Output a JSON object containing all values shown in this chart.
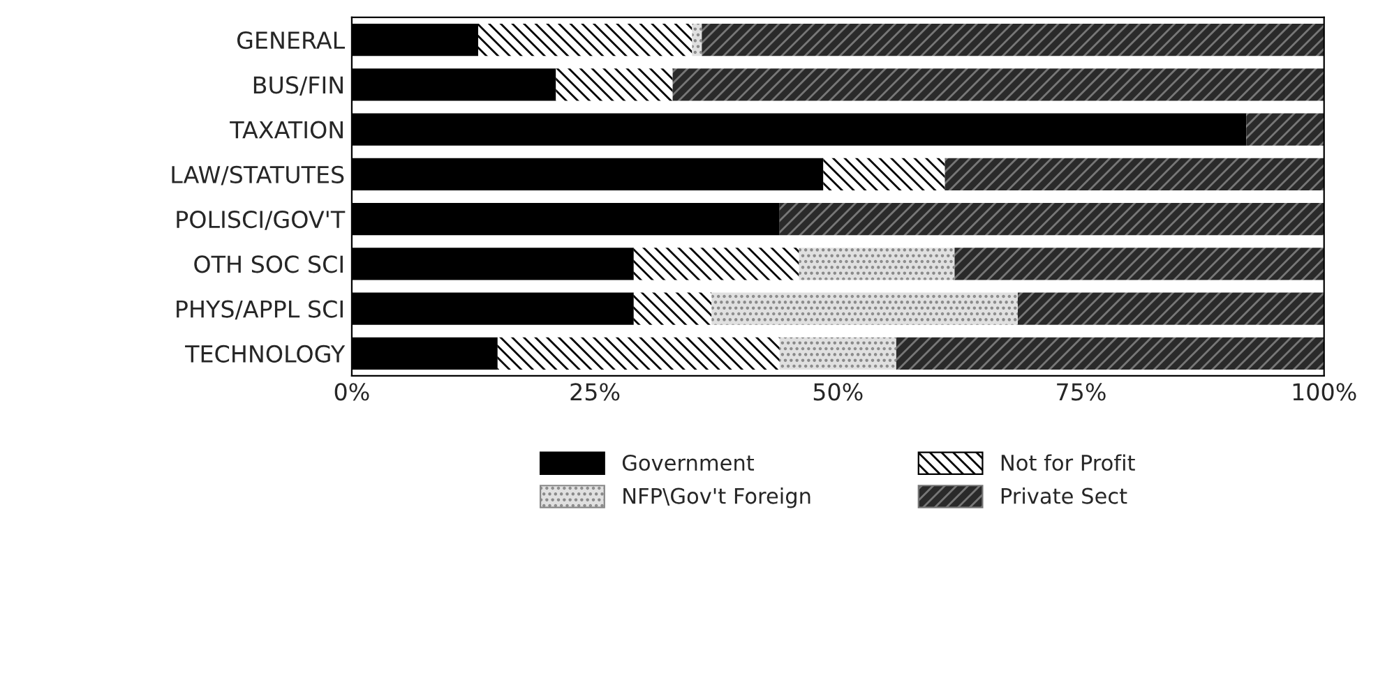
{
  "chart_data": {
    "type": "bar",
    "orientation": "horizontal",
    "stacked": true,
    "categories": [
      "GENERAL",
      "BUS/FIN",
      "TAXATION",
      "LAW/STATUTES",
      "POLISCI/GOV'T",
      "OTH SOC SCI",
      "PHYS/APPL SCI",
      "TECHNOLOGY"
    ],
    "series": [
      {
        "name": "Government",
        "color": "#000000",
        "values": [
          13,
          21,
          92,
          48.5,
          44,
          29,
          29,
          15
        ]
      },
      {
        "name": "Not for Profit",
        "color": "#ffffff",
        "values": [
          22,
          12,
          0,
          12.5,
          0,
          17,
          8,
          29
        ]
      },
      {
        "name": "NFP\\Gov't Foreign",
        "color": "#e0e0e0",
        "values": [
          1,
          0,
          0,
          0,
          0,
          16,
          31.5,
          12
        ]
      },
      {
        "name": "Private Sect",
        "color": "#2a2a2a",
        "values": [
          64,
          67,
          8,
          39,
          56,
          38,
          31.5,
          44
        ]
      }
    ],
    "xlim": [
      0,
      100
    ],
    "xticks": [
      {
        "value": 0,
        "label": "0%"
      },
      {
        "value": 25,
        "label": "25%"
      },
      {
        "value": 50,
        "label": "50%"
      },
      {
        "value": 75,
        "label": "75%"
      },
      {
        "value": 100,
        "label": "100%"
      }
    ],
    "grid": false,
    "legend": "bottom"
  }
}
